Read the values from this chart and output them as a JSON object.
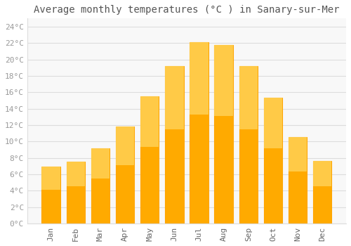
{
  "title": "Average monthly temperatures (°C ) in Sanary-sur-Mer",
  "months": [
    "Jan",
    "Feb",
    "Mar",
    "Apr",
    "May",
    "Jun",
    "Jul",
    "Aug",
    "Sep",
    "Oct",
    "Nov",
    "Dec"
  ],
  "temperatures": [
    6.9,
    7.5,
    9.2,
    11.8,
    15.5,
    19.2,
    22.1,
    21.8,
    19.2,
    15.3,
    10.5,
    7.6
  ],
  "bar_color": "#FFAA00",
  "bar_color_top": "#FFD966",
  "bar_edge_color": "#FFA500",
  "background_color": "#FFFFFF",
  "plot_bg_color": "#F8F8F8",
  "grid_color": "#DDDDDD",
  "ytick_color": "#999999",
  "xtick_color": "#666666",
  "title_color": "#555555",
  "yticks": [
    0,
    2,
    4,
    6,
    8,
    10,
    12,
    14,
    16,
    18,
    20,
    22,
    24
  ],
  "ylim": [
    0,
    25
  ],
  "title_fontsize": 10,
  "tick_fontsize": 8,
  "font_family": "monospace"
}
